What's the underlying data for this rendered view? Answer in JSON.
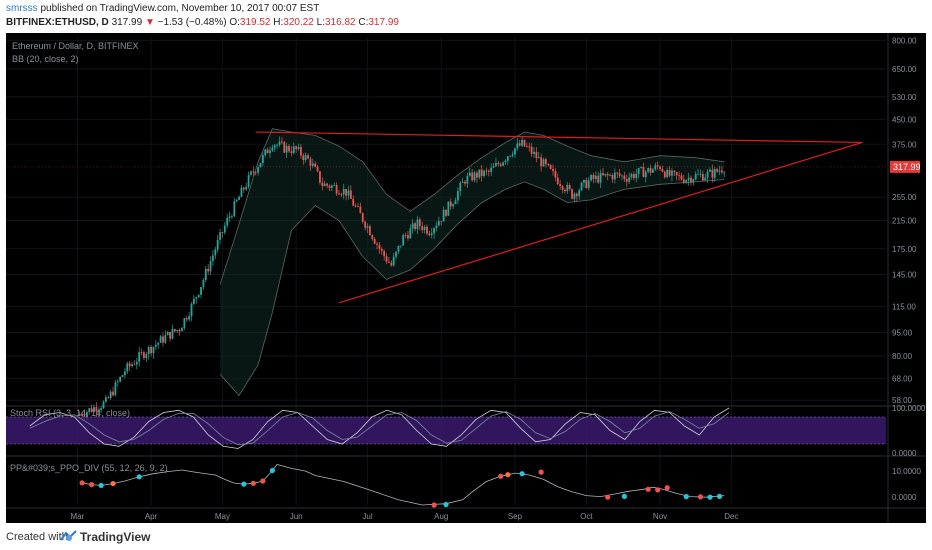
{
  "header": {
    "user": "smrsss",
    "published": " published on TradingView.com, November 10, 2017 00:07 EST",
    "symbol": "BITFINEX:ETHUSD, D",
    "last": "317.99",
    "change": "−1.53 (−0.48%)",
    "o_label": "O:",
    "open": "319.52",
    "h_label": "H:",
    "high": "320.22",
    "l_label": "L:",
    "low": "316.82",
    "c_label": "C:",
    "close": "317.99"
  },
  "footer": {
    "created_with": "Created with",
    "brand": "TradingView"
  },
  "colors": {
    "background": "#000000",
    "up_candle": "#26a69a",
    "down_candle": "#ef5350",
    "trendline": "#e01c1c",
    "band": "#8ea69a",
    "price_tag": "#e53935",
    "stoch_fill": "#3a1a6e"
  },
  "chart_data": {
    "type": "candlestick",
    "legend": "Ethereum / Dollar, D, BITFINEX",
    "indicator": "BB (20, close, 2)",
    "last_price_label": "317.99",
    "last_price": 317.99,
    "price_ticks": [
      "800.00",
      "650.00",
      "530.00",
      "450.00",
      "375.00",
      "317.99",
      "255.00",
      "215.00",
      "175.00",
      "145.00",
      "115.00",
      "95.00",
      "80.00",
      "68.00",
      "58.00"
    ],
    "ylim": [
      56,
      820
    ],
    "y_scale": "log",
    "months": [
      "Mar",
      "Apr",
      "May",
      "Jun",
      "Jul",
      "Aug",
      "Sep",
      "Oct",
      "Nov",
      "Dec"
    ],
    "price_path": [
      {
        "day": 60,
        "close": 52
      },
      {
        "day": 72,
        "close": 57
      },
      {
        "day": 80,
        "close": 72
      },
      {
        "day": 88,
        "close": 82
      },
      {
        "day": 92,
        "close": 86
      },
      {
        "day": 97,
        "close": 92
      },
      {
        "day": 103,
        "close": 98
      },
      {
        "day": 108,
        "close": 115
      },
      {
        "day": 113,
        "close": 140
      },
      {
        "day": 118,
        "close": 175
      },
      {
        "day": 123,
        "close": 215
      },
      {
        "day": 128,
        "close": 255
      },
      {
        "day": 133,
        "close": 300
      },
      {
        "day": 138,
        "close": 340
      },
      {
        "day": 142,
        "close": 380
      },
      {
        "day": 147,
        "close": 365
      },
      {
        "day": 152,
        "close": 360
      },
      {
        "day": 158,
        "close": 330
      },
      {
        "day": 163,
        "close": 280
      },
      {
        "day": 168,
        "close": 275
      },
      {
        "day": 173,
        "close": 265
      },
      {
        "day": 178,
        "close": 230
      },
      {
        "day": 183,
        "close": 200
      },
      {
        "day": 188,
        "close": 170
      },
      {
        "day": 192,
        "close": 155
      },
      {
        "day": 197,
        "close": 190
      },
      {
        "day": 203,
        "close": 210
      },
      {
        "day": 208,
        "close": 200
      },
      {
        "day": 213,
        "close": 220
      },
      {
        "day": 218,
        "close": 250
      },
      {
        "day": 223,
        "close": 290
      },
      {
        "day": 228,
        "close": 300
      },
      {
        "day": 233,
        "close": 305
      },
      {
        "day": 238,
        "close": 330
      },
      {
        "day": 243,
        "close": 360
      },
      {
        "day": 247,
        "close": 375
      },
      {
        "day": 250,
        "close": 360
      },
      {
        "day": 255,
        "close": 330
      },
      {
        "day": 260,
        "close": 300
      },
      {
        "day": 264,
        "close": 280
      },
      {
        "day": 268,
        "close": 260
      },
      {
        "day": 272,
        "close": 275
      },
      {
        "day": 276,
        "close": 290
      },
      {
        "day": 281,
        "close": 295
      },
      {
        "day": 286,
        "close": 300
      },
      {
        "day": 291,
        "close": 295
      },
      {
        "day": 296,
        "close": 305
      },
      {
        "day": 301,
        "close": 310
      },
      {
        "day": 305,
        "close": 320
      },
      {
        "day": 308,
        "close": 300
      },
      {
        "day": 312,
        "close": 295
      },
      {
        "day": 316,
        "close": 292
      },
      {
        "day": 320,
        "close": 298
      },
      {
        "day": 324,
        "close": 300
      },
      {
        "day": 328,
        "close": 305
      },
      {
        "day": 332,
        "close": 318
      }
    ],
    "bb_upper": [
      {
        "day": 120,
        "v": 135
      },
      {
        "day": 128,
        "v": 210
      },
      {
        "day": 136,
        "v": 330
      },
      {
        "day": 142,
        "v": 420
      },
      {
        "day": 150,
        "v": 410
      },
      {
        "day": 160,
        "v": 400
      },
      {
        "day": 170,
        "v": 370
      },
      {
        "day": 180,
        "v": 330
      },
      {
        "day": 190,
        "v": 260
      },
      {
        "day": 200,
        "v": 230
      },
      {
        "day": 210,
        "v": 260
      },
      {
        "day": 220,
        "v": 300
      },
      {
        "day": 230,
        "v": 340
      },
      {
        "day": 240,
        "v": 380
      },
      {
        "day": 248,
        "v": 410
      },
      {
        "day": 256,
        "v": 400
      },
      {
        "day": 266,
        "v": 370
      },
      {
        "day": 276,
        "v": 345
      },
      {
        "day": 290,
        "v": 330
      },
      {
        "day": 305,
        "v": 345
      },
      {
        "day": 320,
        "v": 340
      },
      {
        "day": 332,
        "v": 330
      }
    ],
    "bb_lower": [
      {
        "day": 120,
        "v": 70
      },
      {
        "day": 128,
        "v": 60
      },
      {
        "day": 136,
        "v": 75
      },
      {
        "day": 142,
        "v": 110
      },
      {
        "day": 150,
        "v": 200
      },
      {
        "day": 160,
        "v": 240
      },
      {
        "day": 170,
        "v": 215
      },
      {
        "day": 180,
        "v": 165
      },
      {
        "day": 190,
        "v": 140
      },
      {
        "day": 200,
        "v": 150
      },
      {
        "day": 210,
        "v": 175
      },
      {
        "day": 220,
        "v": 210
      },
      {
        "day": 230,
        "v": 245
      },
      {
        "day": 240,
        "v": 270
      },
      {
        "day": 248,
        "v": 285
      },
      {
        "day": 256,
        "v": 270
      },
      {
        "day": 266,
        "v": 245
      },
      {
        "day": 276,
        "v": 250
      },
      {
        "day": 290,
        "v": 270
      },
      {
        "day": 305,
        "v": 280
      },
      {
        "day": 320,
        "v": 285
      },
      {
        "day": 332,
        "v": 290
      }
    ],
    "trendlines": [
      {
        "from": {
          "day": 135,
          "price": 410
        },
        "to": {
          "day": 390,
          "price": 380
        }
      },
      {
        "from": {
          "day": 170,
          "price": 118
        },
        "to": {
          "day": 390,
          "price": 380
        }
      }
    ],
    "stoch": {
      "label": "Stoch RSI (3, 3, 14, 14, close)",
      "ticks": [
        "100.0000",
        "0.0000"
      ],
      "ylim": [
        0,
        100
      ],
      "k_values": [
        60,
        85,
        90,
        80,
        45,
        20,
        15,
        35,
        70,
        90,
        95,
        80,
        40,
        15,
        10,
        30,
        70,
        95,
        90,
        60,
        30,
        20,
        45,
        80,
        95,
        85,
        50,
        20,
        15,
        40,
        75,
        95,
        90,
        55,
        25,
        30,
        65,
        90,
        85,
        50,
        30,
        70,
        95,
        90,
        60,
        40,
        80,
        100
      ],
      "d_values": [
        55,
        70,
        82,
        85,
        65,
        40,
        25,
        30,
        50,
        75,
        88,
        88,
        65,
        35,
        18,
        22,
        50,
        80,
        90,
        78,
        50,
        30,
        35,
        60,
        85,
        90,
        72,
        40,
        22,
        28,
        55,
        82,
        92,
        75,
        45,
        32,
        48,
        75,
        88,
        70,
        45,
        55,
        82,
        92,
        75,
        55,
        65,
        90
      ]
    },
    "ppo": {
      "label": "PP&#039;s_PPO_DIV (55, 12, 26, 9, 2)",
      "ticks": [
        "10.0000",
        "0.0000"
      ],
      "ylim": [
        -3,
        15
      ],
      "path": [
        {
          "day": 62,
          "v": 5.5
        },
        {
          "day": 66,
          "v": 4.8
        },
        {
          "day": 70,
          "v": 4.5
        },
        {
          "day": 75,
          "v": 5.2
        },
        {
          "day": 80,
          "v": 6.2
        },
        {
          "day": 86,
          "v": 7.8
        },
        {
          "day": 92,
          "v": 9.0
        },
        {
          "day": 98,
          "v": 9.8
        },
        {
          "day": 104,
          "v": 10.4
        },
        {
          "day": 110,
          "v": 9.5
        },
        {
          "day": 118,
          "v": 8.5
        },
        {
          "day": 122,
          "v": 6.8
        },
        {
          "day": 126,
          "v": 5.4
        },
        {
          "day": 130,
          "v": 5.0
        },
        {
          "day": 134,
          "v": 5.3
        },
        {
          "day": 138,
          "v": 6.2
        },
        {
          "day": 142,
          "v": 10.2
        },
        {
          "day": 144,
          "v": 12.5
        },
        {
          "day": 150,
          "v": 11.0
        },
        {
          "day": 156,
          "v": 10.0
        },
        {
          "day": 160,
          "v": 8.3
        },
        {
          "day": 172,
          "v": 6.0
        },
        {
          "day": 182,
          "v": 3.0
        },
        {
          "day": 195,
          "v": -1.0
        },
        {
          "day": 205,
          "v": -3.0
        },
        {
          "day": 215,
          "v": -2.5
        },
        {
          "day": 222,
          "v": -1.0
        },
        {
          "day": 226,
          "v": 2.0
        },
        {
          "day": 232,
          "v": 6.0
        },
        {
          "day": 238,
          "v": 8.0
        },
        {
          "day": 244,
          "v": 9.2
        },
        {
          "day": 250,
          "v": 8.5
        },
        {
          "day": 256,
          "v": 6.8
        },
        {
          "day": 262,
          "v": 4.0
        },
        {
          "day": 268,
          "v": 2.0
        },
        {
          "day": 274,
          "v": 0.6
        },
        {
          "day": 280,
          "v": 0.2
        },
        {
          "day": 286,
          "v": 1.2
        },
        {
          "day": 292,
          "v": 2.3
        },
        {
          "day": 298,
          "v": 3.0
        },
        {
          "day": 302,
          "v": 3.8
        },
        {
          "day": 306,
          "v": 3.1
        },
        {
          "day": 312,
          "v": 1.4
        },
        {
          "day": 318,
          "v": 0.2
        },
        {
          "day": 324,
          "v": 0.0
        },
        {
          "day": 332,
          "v": 0.6
        }
      ],
      "markers": [
        {
          "day": 62,
          "v": 5.5,
          "color": "#ef5350"
        },
        {
          "day": 66,
          "v": 4.8,
          "color": "#ef5350"
        },
        {
          "day": 70,
          "v": 4.5,
          "color": "#26c6da"
        },
        {
          "day": 75,
          "v": 5.2,
          "color": "#ff7043"
        },
        {
          "day": 86,
          "v": 7.8,
          "color": "#26c6da"
        },
        {
          "day": 130,
          "v": 5.0,
          "color": "#26c6da"
        },
        {
          "day": 134,
          "v": 5.3,
          "color": "#ef5350"
        },
        {
          "day": 138,
          "v": 6.2,
          "color": "#ef5350"
        },
        {
          "day": 142,
          "v": 10.2,
          "color": "#26c6da"
        },
        {
          "day": 210,
          "v": -3.0,
          "color": "#ef5350"
        },
        {
          "day": 215,
          "v": -2.8,
          "color": "#26c6da"
        },
        {
          "day": 238,
          "v": 8.0,
          "color": "#ef5350"
        },
        {
          "day": 241,
          "v": 8.6,
          "color": "#ff7043"
        },
        {
          "day": 247,
          "v": 9.0,
          "color": "#26c6da"
        },
        {
          "day": 255,
          "v": 9.6,
          "color": "#ef5350"
        },
        {
          "day": 283,
          "v": 0.0,
          "color": "#ef5350"
        },
        {
          "day": 290,
          "v": 0.3,
          "color": "#26c6da"
        },
        {
          "day": 300,
          "v": 3.0,
          "color": "#ef5350"
        },
        {
          "day": 304,
          "v": 2.8,
          "color": "#ef5350"
        },
        {
          "day": 308,
          "v": 3.6,
          "color": "#ef5350"
        },
        {
          "day": 316,
          "v": 0.2,
          "color": "#26c6da"
        },
        {
          "day": 322,
          "v": 0.1,
          "color": "#ef5350"
        },
        {
          "day": 326,
          "v": 0.0,
          "color": "#26c6da"
        },
        {
          "day": 330,
          "v": 0.3,
          "color": "#26c6da"
        }
      ]
    }
  }
}
